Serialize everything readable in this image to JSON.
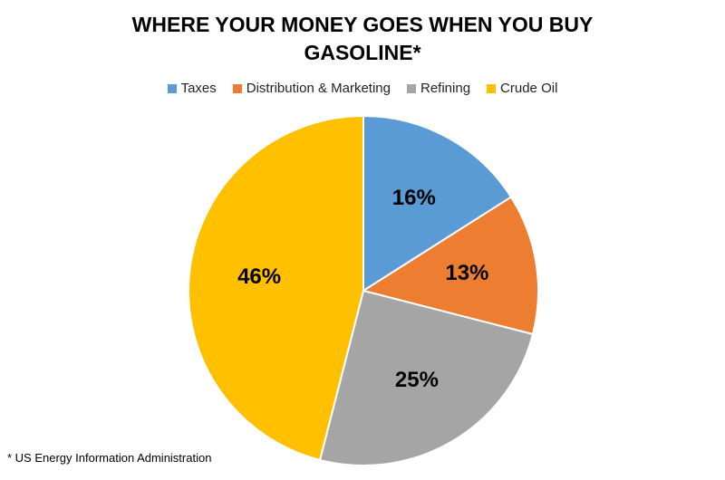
{
  "chart_data": {
    "type": "pie",
    "title": "WHERE YOUR MONEY GOES WHEN YOU BUY GASOLINE*",
    "categories": [
      "Taxes",
      "Distribution & Marketing",
      "Refining",
      "Crude Oil"
    ],
    "values": [
      16,
      13,
      25,
      46
    ],
    "value_labels": [
      "16%",
      "13%",
      "25%",
      "46%"
    ],
    "colors": [
      "#5b9bd5",
      "#ed7d31",
      "#a5a5a5",
      "#ffc000"
    ],
    "legend": "top",
    "footnote": "* US Energy Information Administration"
  }
}
